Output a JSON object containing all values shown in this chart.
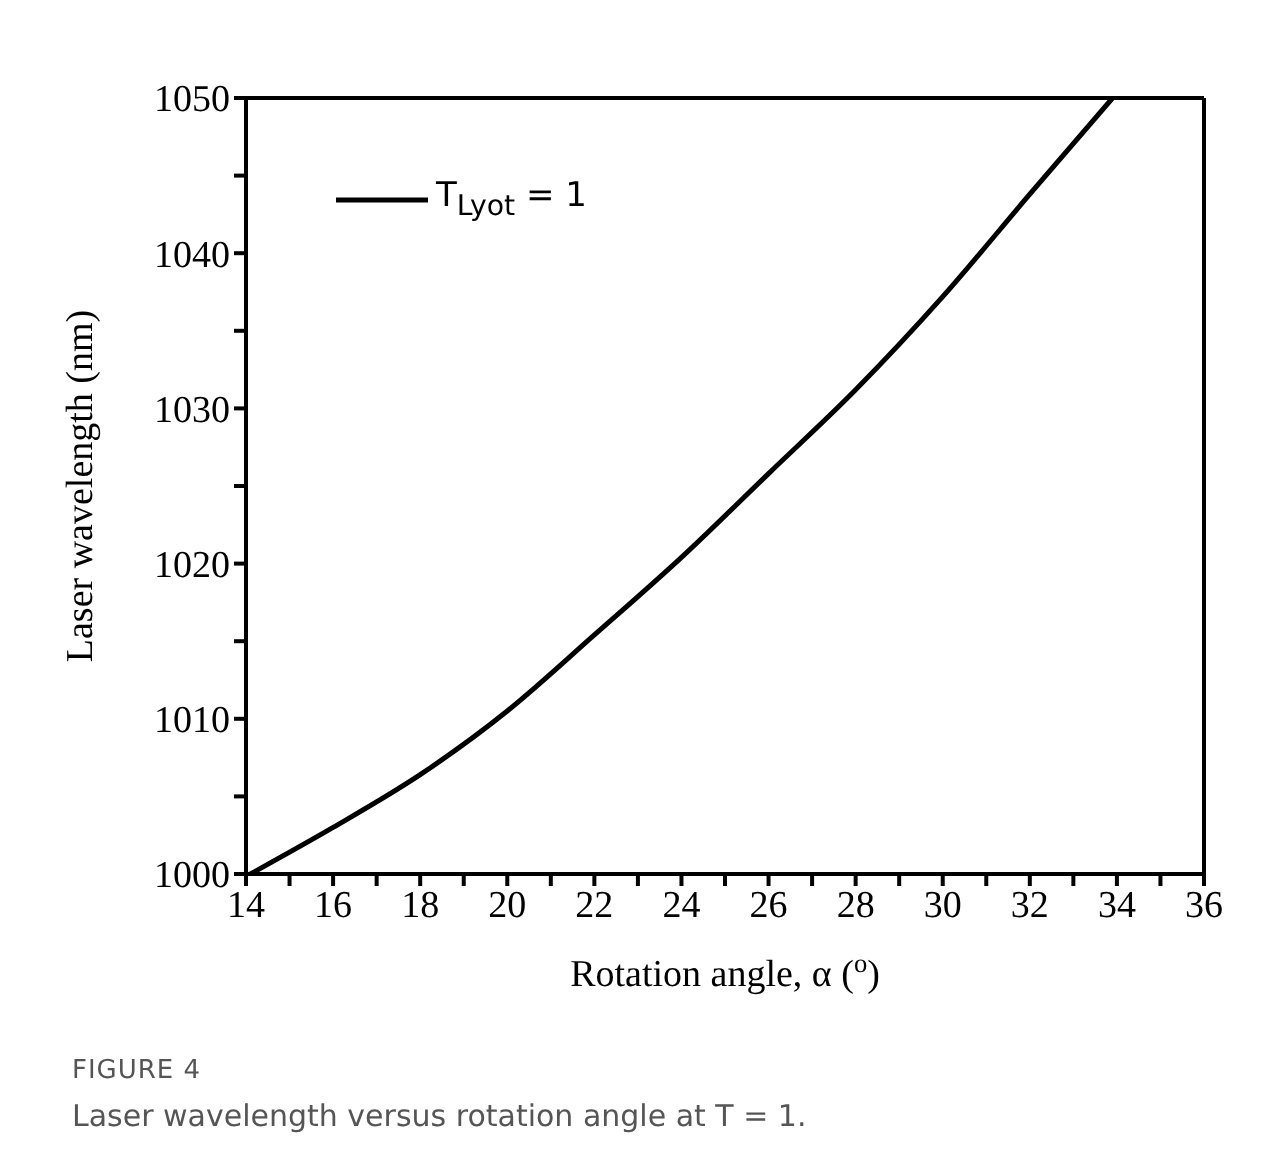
{
  "chart_data": {
    "type": "line",
    "xlabel": "Rotation angle, α ($^{o}$)",
    "ylabel": "Laser wavelength (nm)",
    "x": [
      14.1,
      16,
      18,
      20,
      22,
      24,
      26,
      28,
      30,
      32,
      33.9
    ],
    "series": [
      {
        "name": "T$_{Lyot}$ = 1",
        "color": "#000000",
        "values": [
          1000,
          1003,
          1006.4,
          1010.5,
          1015.4,
          1020.4,
          1025.8,
          1031.2,
          1037.2,
          1043.8,
          1050
        ]
      }
    ],
    "xlim": [
      14,
      36
    ],
    "ylim": [
      1000,
      1050
    ],
    "xticks": [
      14,
      {
        "value": 15,
        "label": null
      },
      16,
      {
        "value": 17,
        "label": null
      },
      18,
      {
        "value": 19,
        "label": null
      },
      20,
      {
        "value": 21,
        "label": null
      },
      22,
      {
        "value": 23,
        "label": null
      },
      24,
      {
        "value": 25,
        "label": null
      },
      26,
      {
        "value": 27,
        "label": null
      },
      28,
      {
        "value": 29,
        "label": null
      },
      30,
      {
        "value": 31,
        "label": null
      },
      32,
      {
        "value": 33,
        "label": null
      },
      34,
      {
        "value": 35,
        "label": null
      },
      36
    ],
    "yticks": [
      1000,
      {
        "value": 1005,
        "label": null
      },
      1010,
      {
        "value": 1015,
        "label": null
      },
      1020,
      {
        "value": 1025,
        "label": null
      },
      1030,
      {
        "value": 1035,
        "label": null
      },
      1040,
      {
        "value": 1045,
        "label": null
      },
      1050
    ],
    "legend": "top left",
    "grid": false,
    "marker": "none",
    "line_style": "solid",
    "annotations": [
      "FIGURE 4",
      "Laser wavelength versus rotation angle at T = 1."
    ]
  }
}
